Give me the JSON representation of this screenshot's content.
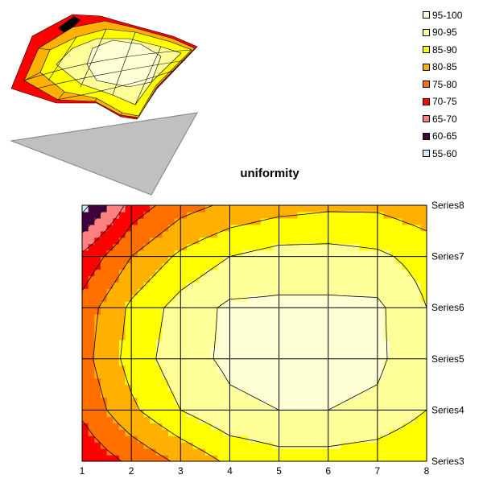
{
  "chart_data": {
    "type": "heatmap",
    "title": "uniformity",
    "x_categories": [
      "1",
      "2",
      "3",
      "4",
      "5",
      "6",
      "7",
      "8"
    ],
    "series": [
      "Series3",
      "Series4",
      "Series5",
      "Series6",
      "Series7",
      "Series8"
    ],
    "values": [
      [
        71,
        76,
        81,
        86,
        88,
        88,
        87,
        85
      ],
      [
        76,
        84,
        90,
        94,
        95,
        95,
        94,
        90
      ],
      [
        78,
        87,
        93,
        96,
        97,
        97,
        96,
        91
      ],
      [
        77,
        86,
        92,
        96,
        96,
        96,
        96,
        90
      ],
      [
        71,
        80,
        86,
        90,
        92,
        92,
        91,
        88
      ],
      [
        58,
        72,
        78,
        81,
        83,
        84,
        84,
        82
      ]
    ],
    "legend": [
      {
        "label": "95-100",
        "color": "#ffffd5"
      },
      {
        "label": "90-95",
        "color": "#ffff9a"
      },
      {
        "label": "85-90",
        "color": "#ffff00"
      },
      {
        "label": "80-85",
        "color": "#ffb000"
      },
      {
        "label": "75-80",
        "color": "#ff7000"
      },
      {
        "label": "70-75",
        "color": "#ff0000"
      },
      {
        "label": "65-70",
        "color": "#ff8080"
      },
      {
        "label": "60-65",
        "color": "#400040"
      },
      {
        "label": "55-60",
        "color": "#ccecff"
      }
    ],
    "legend_position": "top-right",
    "grid": true
  }
}
